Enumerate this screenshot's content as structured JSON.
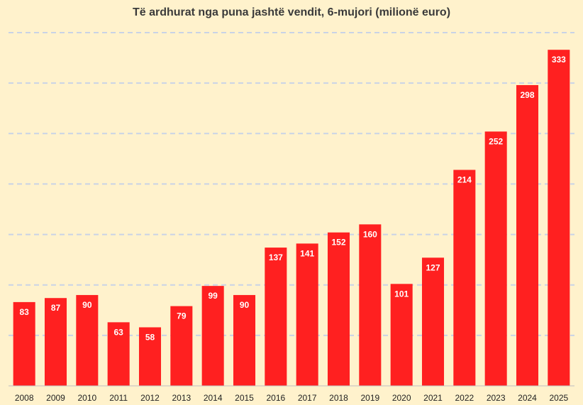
{
  "chart_data": {
    "type": "bar",
    "title": "Të ardhurat nga puna jashtë vendit, 6-mujori (milionë euro)",
    "xlabel": "",
    "ylabel": "",
    "categories": [
      "2008",
      "2009",
      "2010",
      "2011",
      "2012",
      "2013",
      "2014",
      "2015",
      "2016",
      "2017",
      "2018",
      "2019",
      "2020",
      "2021",
      "2022",
      "2023",
      "2024",
      "2025"
    ],
    "values": [
      83,
      87,
      90,
      63,
      58,
      79,
      99,
      90,
      137,
      141,
      152,
      160,
      101,
      127,
      214,
      252,
      298,
      333
    ],
    "ylim": [
      0,
      350
    ],
    "gridlines": "dashed",
    "legend": "none"
  },
  "colors": {
    "background": "#fff2cc",
    "bar": "#ff2020",
    "grid": "#c9d3e6",
    "axis": "#bfbfbf"
  }
}
